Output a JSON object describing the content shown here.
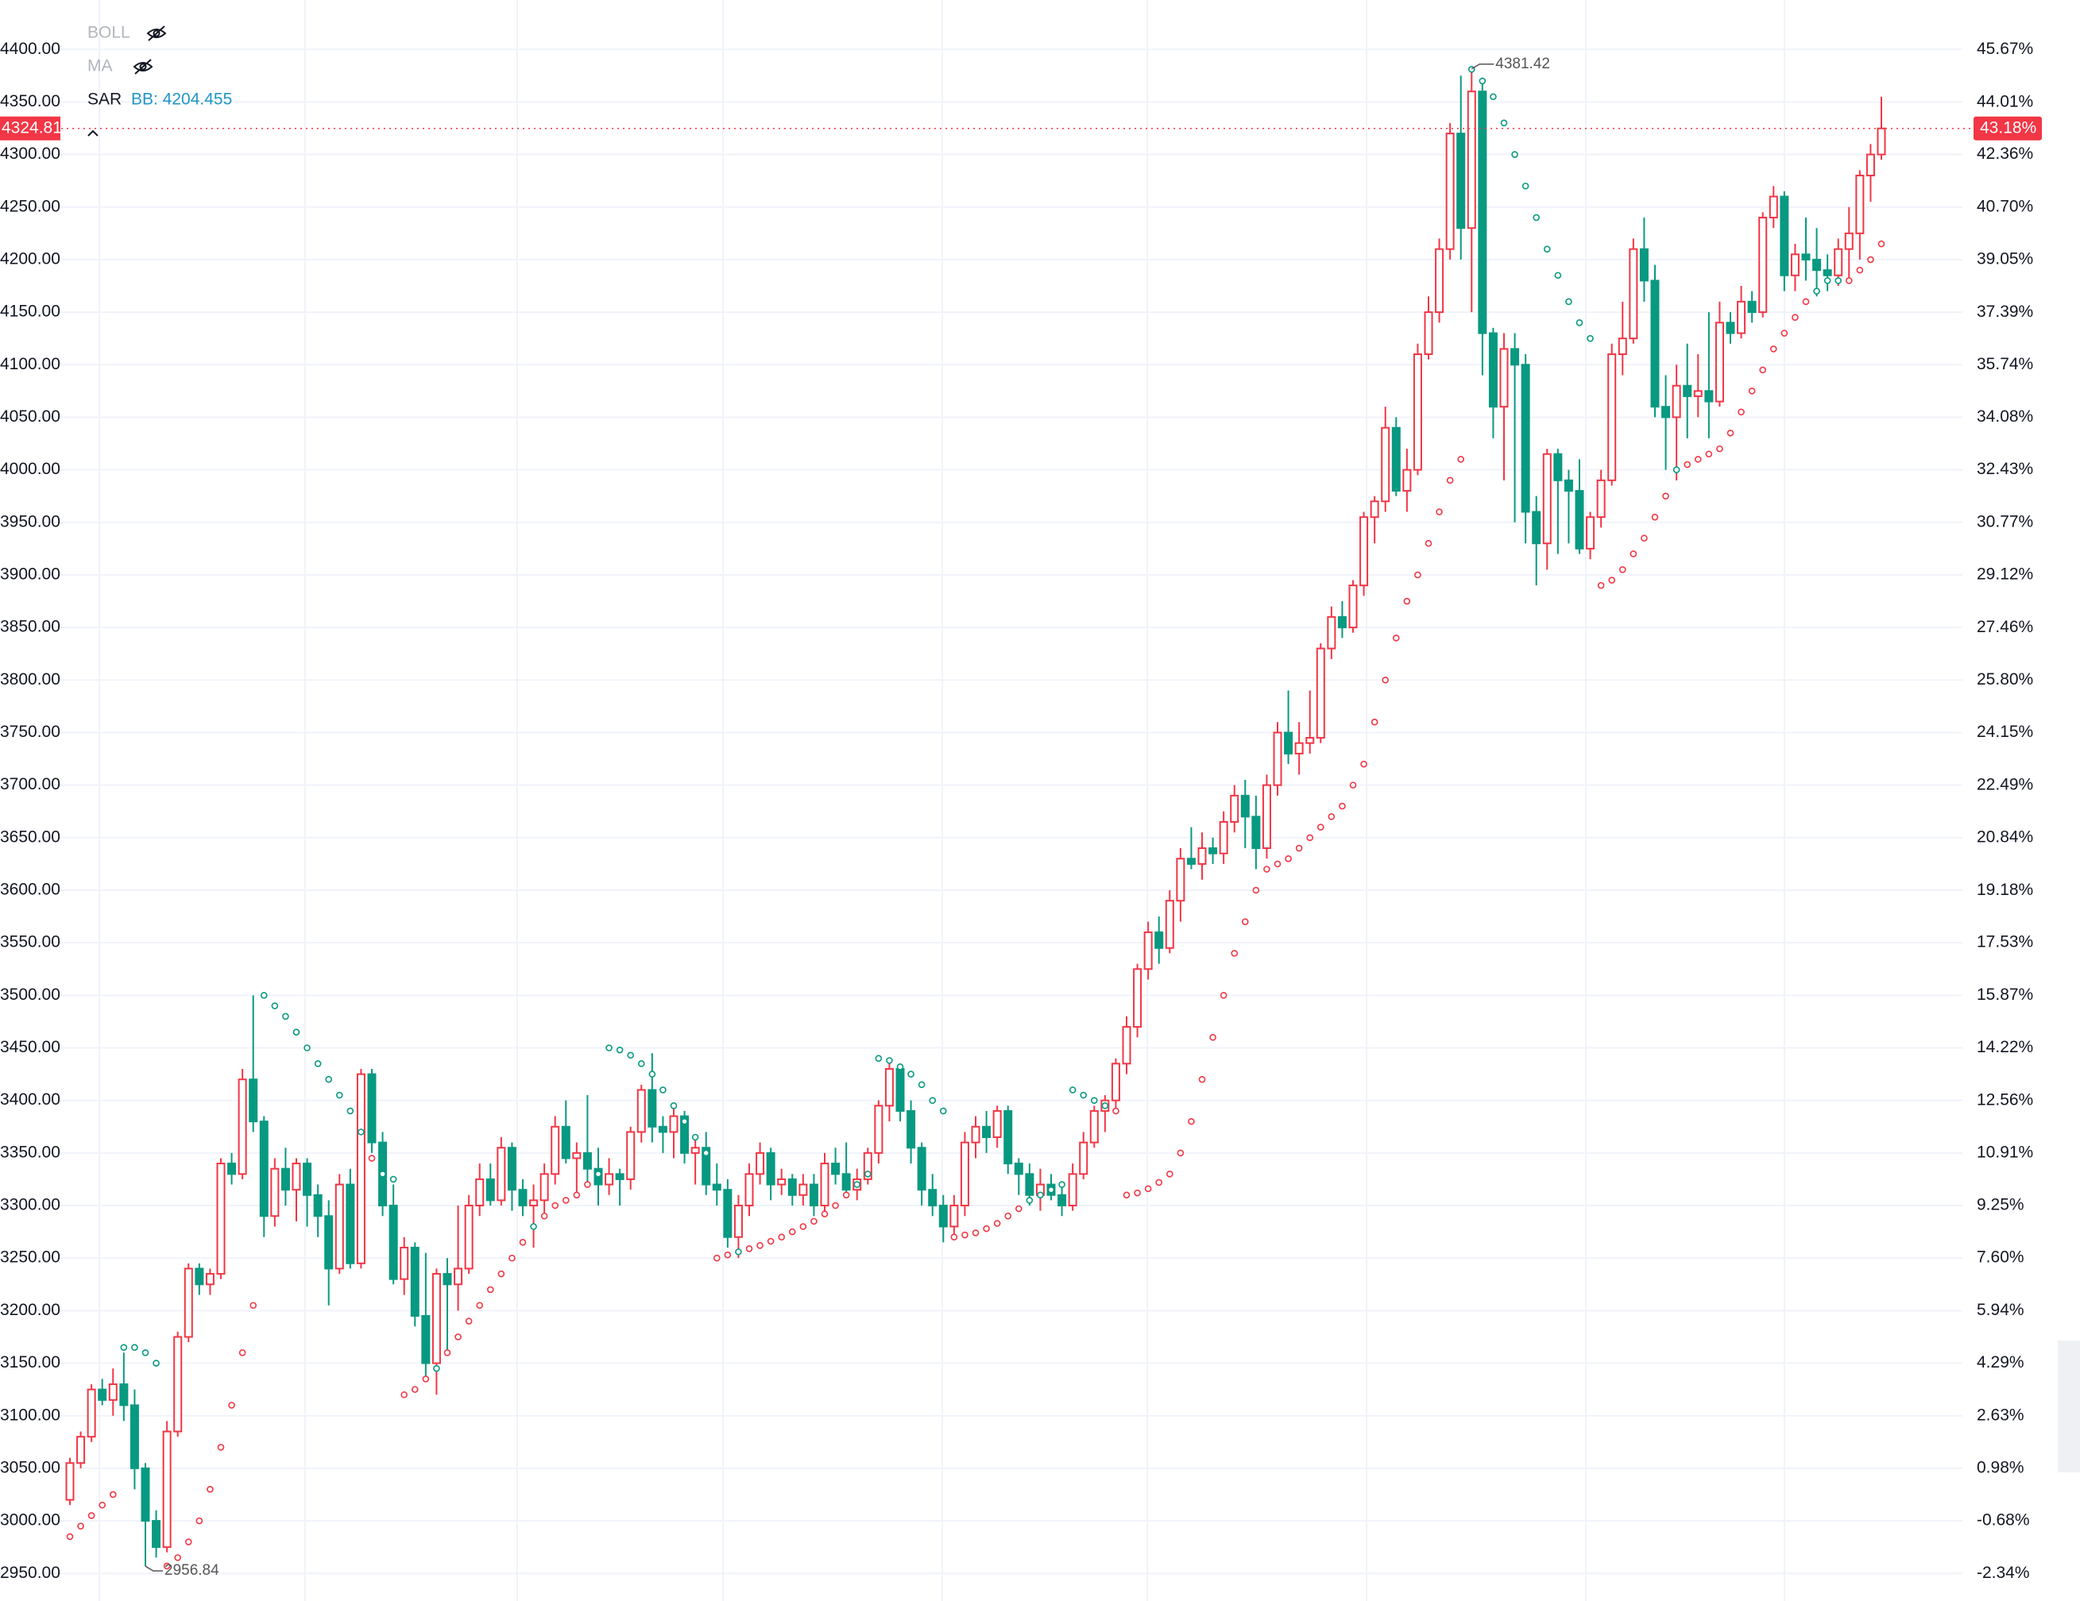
{
  "chart_data": {
    "type": "candlestick",
    "indicators": [
      "BOLL",
      "MA",
      "SAR"
    ],
    "bb_label": "BB: 4204.455",
    "up_color": "#f23645",
    "down_color": "#089981",
    "ylim": [
      2926,
      4447
    ],
    "yticks": [
      {
        "value": 2950,
        "label": "2950.00"
      },
      {
        "value": 3000,
        "label": "3000.00"
      },
      {
        "value": 3050,
        "label": "3050.00"
      },
      {
        "value": 3100,
        "label": "3100.00"
      },
      {
        "value": 3150,
        "label": "3150.00"
      },
      {
        "value": 3200,
        "label": "3200.00"
      },
      {
        "value": 3250,
        "label": "3250.00"
      },
      {
        "value": 3300,
        "label": "3300.00"
      },
      {
        "value": 3350,
        "label": "3350.00"
      },
      {
        "value": 3400,
        "label": "3400.00"
      },
      {
        "value": 3450,
        "label": "3450.00"
      },
      {
        "value": 3500,
        "label": "3500.00"
      },
      {
        "value": 3550,
        "label": "3550.00"
      },
      {
        "value": 3600,
        "label": "3600.00"
      },
      {
        "value": 3650,
        "label": "3650.00"
      },
      {
        "value": 3700,
        "label": "3700.00"
      },
      {
        "value": 3750,
        "label": "3750.00"
      },
      {
        "value": 3800,
        "label": "3800.00"
      },
      {
        "value": 3850,
        "label": "3850.00"
      },
      {
        "value": 3900,
        "label": "3900.00"
      },
      {
        "value": 3950,
        "label": "3950.00"
      },
      {
        "value": 4000,
        "label": "4000.00"
      },
      {
        "value": 4050,
        "label": "4050.00"
      },
      {
        "value": 4100,
        "label": "4100.00"
      },
      {
        "value": 4150,
        "label": "4150.00"
      },
      {
        "value": 4200,
        "label": "4200.00"
      },
      {
        "value": 4250,
        "label": "4250.00"
      },
      {
        "value": 4300,
        "label": "4300.00"
      },
      {
        "value": 4350,
        "label": "4350.00"
      },
      {
        "value": 4400,
        "label": "4400.00"
      }
    ],
    "y2lim": [
      -3.13,
      47.23
    ],
    "y2ticks": [
      {
        "value": -2.34,
        "label": "-2.34%"
      },
      {
        "value": -0.68,
        "label": "-0.68%"
      },
      {
        "value": 0.98,
        "label": "0.98%"
      },
      {
        "value": 2.63,
        "label": "2.63%"
      },
      {
        "value": 4.29,
        "label": "4.29%"
      },
      {
        "value": 5.94,
        "label": "5.94%"
      },
      {
        "value": 7.6,
        "label": "7.60%"
      },
      {
        "value": 9.25,
        "label": "9.25%"
      },
      {
        "value": 10.91,
        "label": "10.91%"
      },
      {
        "value": 12.56,
        "label": "12.56%"
      },
      {
        "value": 14.22,
        "label": "14.22%"
      },
      {
        "value": 15.87,
        "label": "15.87%"
      },
      {
        "value": 17.53,
        "label": "17.53%"
      },
      {
        "value": 19.18,
        "label": "19.18%"
      },
      {
        "value": 20.84,
        "label": "20.84%"
      },
      {
        "value": 22.49,
        "label": "22.49%"
      },
      {
        "value": 24.15,
        "label": "24.15%"
      },
      {
        "value": 25.8,
        "label": "25.80%"
      },
      {
        "value": 27.46,
        "label": "27.46%"
      },
      {
        "value": 29.12,
        "label": "29.12%"
      },
      {
        "value": 30.77,
        "label": "30.77%"
      },
      {
        "value": 32.43,
        "label": "32.43%"
      },
      {
        "value": 34.08,
        "label": "34.08%"
      },
      {
        "value": 35.74,
        "label": "35.74%"
      },
      {
        "value": 37.39,
        "label": "37.39%"
      },
      {
        "value": 39.05,
        "label": "39.05%"
      },
      {
        "value": 40.7,
        "label": "40.70%"
      },
      {
        "value": 42.36,
        "label": "42.36%"
      },
      {
        "value": 44.01,
        "label": "44.01%"
      },
      {
        "value": 45.67,
        "label": "45.67%"
      }
    ],
    "last_change": {
      "value": 43.18,
      "label": "43.18%"
    },
    "ohlc": [
      [
        3020,
        3060,
        3015,
        3055
      ],
      [
        3055,
        3085,
        3050,
        3080
      ],
      [
        3080,
        3130,
        3075,
        3125
      ],
      [
        3125,
        3135,
        3110,
        3115
      ],
      [
        3115,
        3145,
        3100,
        3130
      ],
      [
        3130,
        3160,
        3095,
        3110
      ],
      [
        3110,
        3125,
        3030,
        3050
      ],
      [
        3050,
        3055,
        2956.84,
        3000
      ],
      [
        3000,
        3010,
        2965,
        2975
      ],
      [
        2975,
        3095,
        2970,
        3085
      ],
      [
        3085,
        3180,
        3080,
        3175
      ],
      [
        3175,
        3245,
        3170,
        3240
      ],
      [
        3240,
        3245,
        3215,
        3225
      ],
      [
        3225,
        3240,
        3215,
        3235
      ],
      [
        3235,
        3345,
        3230,
        3340
      ],
      [
        3340,
        3350,
        3320,
        3330
      ],
      [
        3330,
        3430,
        3325,
        3420
      ],
      [
        3420,
        3500,
        3370,
        3380
      ],
      [
        3380,
        3385,
        3270,
        3290
      ],
      [
        3290,
        3345,
        3280,
        3335
      ],
      [
        3335,
        3355,
        3300,
        3315
      ],
      [
        3315,
        3345,
        3285,
        3340
      ],
      [
        3340,
        3345,
        3280,
        3310
      ],
      [
        3310,
        3320,
        3270,
        3290
      ],
      [
        3290,
        3305,
        3205,
        3240
      ],
      [
        3240,
        3330,
        3235,
        3320
      ],
      [
        3320,
        3335,
        3240,
        3245
      ],
      [
        3245,
        3430,
        3240,
        3425
      ],
      [
        3425,
        3430,
        3350,
        3360
      ],
      [
        3360,
        3370,
        3290,
        3300
      ],
      [
        3300,
        3320,
        3225,
        3230
      ],
      [
        3230,
        3270,
        3215,
        3260
      ],
      [
        3260,
        3265,
        3185,
        3195
      ],
      [
        3195,
        3255,
        3135,
        3150
      ],
      [
        3150,
        3240,
        3120,
        3235
      ],
      [
        3235,
        3250,
        3160,
        3225
      ],
      [
        3225,
        3300,
        3200,
        3240
      ],
      [
        3240,
        3310,
        3235,
        3300
      ],
      [
        3300,
        3340,
        3290,
        3325
      ],
      [
        3325,
        3340,
        3300,
        3305
      ],
      [
        3305,
        3365,
        3300,
        3355
      ],
      [
        3355,
        3360,
        3295,
        3315
      ],
      [
        3315,
        3325,
        3290,
        3300
      ],
      [
        3300,
        3320,
        3260,
        3305
      ],
      [
        3305,
        3340,
        3290,
        3330
      ],
      [
        3330,
        3385,
        3320,
        3375
      ],
      [
        3375,
        3400,
        3340,
        3345
      ],
      [
        3345,
        3360,
        3310,
        3350
      ],
      [
        3350,
        3405,
        3320,
        3335
      ],
      [
        3335,
        3355,
        3300,
        3320
      ],
      [
        3320,
        3345,
        3310,
        3330
      ],
      [
        3330,
        3335,
        3300,
        3325
      ],
      [
        3325,
        3375,
        3315,
        3370
      ],
      [
        3370,
        3415,
        3360,
        3410
      ],
      [
        3410,
        3445,
        3360,
        3375
      ],
      [
        3375,
        3385,
        3350,
        3370
      ],
      [
        3370,
        3395,
        3345,
        3385
      ],
      [
        3385,
        3390,
        3340,
        3350
      ],
      [
        3350,
        3365,
        3320,
        3355
      ],
      [
        3355,
        3370,
        3310,
        3320
      ],
      [
        3320,
        3340,
        3300,
        3315
      ],
      [
        3315,
        3325,
        3260,
        3270
      ],
      [
        3270,
        3310,
        3250,
        3300
      ],
      [
        3300,
        3340,
        3290,
        3330
      ],
      [
        3330,
        3360,
        3320,
        3350
      ],
      [
        3350,
        3355,
        3305,
        3320
      ],
      [
        3320,
        3335,
        3310,
        3325
      ],
      [
        3325,
        3330,
        3300,
        3310
      ],
      [
        3310,
        3330,
        3300,
        3320
      ],
      [
        3320,
        3330,
        3290,
        3300
      ],
      [
        3300,
        3350,
        3295,
        3340
      ],
      [
        3340,
        3355,
        3320,
        3330
      ],
      [
        3330,
        3360,
        3310,
        3315
      ],
      [
        3315,
        3335,
        3305,
        3325
      ],
      [
        3325,
        3355,
        3320,
        3350
      ],
      [
        3350,
        3400,
        3340,
        3395
      ],
      [
        3395,
        3435,
        3380,
        3430
      ],
      [
        3430,
        3435,
        3380,
        3390
      ],
      [
        3390,
        3400,
        3340,
        3355
      ],
      [
        3355,
        3360,
        3300,
        3315
      ],
      [
        3315,
        3330,
        3290,
        3300
      ],
      [
        3300,
        3310,
        3265,
        3280
      ],
      [
        3280,
        3310,
        3270,
        3300
      ],
      [
        3300,
        3370,
        3290,
        3360
      ],
      [
        3360,
        3385,
        3345,
        3375
      ],
      [
        3375,
        3390,
        3350,
        3365
      ],
      [
        3365,
        3395,
        3355,
        3390
      ],
      [
        3390,
        3395,
        3330,
        3340
      ],
      [
        3340,
        3345,
        3310,
        3330
      ],
      [
        3330,
        3340,
        3300,
        3310
      ],
      [
        3310,
        3335,
        3295,
        3320
      ],
      [
        3320,
        3330,
        3305,
        3310
      ],
      [
        3310,
        3320,
        3290,
        3300
      ],
      [
        3300,
        3340,
        3295,
        3330
      ],
      [
        3330,
        3370,
        3325,
        3360
      ],
      [
        3360,
        3395,
        3355,
        3390
      ],
      [
        3390,
        3405,
        3370,
        3400
      ],
      [
        3400,
        3440,
        3390,
        3435
      ],
      [
        3435,
        3480,
        3425,
        3470
      ],
      [
        3470,
        3530,
        3460,
        3525
      ],
      [
        3525,
        3570,
        3515,
        3560
      ],
      [
        3560,
        3575,
        3530,
        3545
      ],
      [
        3545,
        3600,
        3540,
        3590
      ],
      [
        3590,
        3640,
        3570,
        3630
      ],
      [
        3630,
        3660,
        3620,
        3625
      ],
      [
        3625,
        3655,
        3610,
        3640
      ],
      [
        3640,
        3650,
        3625,
        3635
      ],
      [
        3635,
        3675,
        3625,
        3665
      ],
      [
        3665,
        3700,
        3655,
        3690
      ],
      [
        3690,
        3705,
        3640,
        3670
      ],
      [
        3670,
        3690,
        3620,
        3640
      ],
      [
        3640,
        3710,
        3630,
        3700
      ],
      [
        3700,
        3760,
        3690,
        3750
      ],
      [
        3750,
        3790,
        3720,
        3730
      ],
      [
        3730,
        3760,
        3710,
        3740
      ],
      [
        3740,
        3790,
        3730,
        3745
      ],
      [
        3745,
        3835,
        3740,
        3830
      ],
      [
        3830,
        3870,
        3820,
        3860
      ],
      [
        3860,
        3875,
        3840,
        3850
      ],
      [
        3850,
        3895,
        3845,
        3890
      ],
      [
        3890,
        3960,
        3880,
        3955
      ],
      [
        3955,
        3975,
        3930,
        3970
      ],
      [
        3970,
        4060,
        3960,
        4040
      ],
      [
        4040,
        4050,
        3975,
        3980
      ],
      [
        3980,
        4020,
        3960,
        4000
      ],
      [
        4000,
        4120,
        3995,
        4110
      ],
      [
        4110,
        4165,
        4105,
        4150
      ],
      [
        4150,
        4220,
        4140,
        4210
      ],
      [
        4210,
        4330,
        4200,
        4320
      ],
      [
        4320,
        4375,
        4200,
        4230
      ],
      [
        4230,
        4381.42,
        4150,
        4360
      ],
      [
        4360,
        4370,
        4090,
        4130
      ],
      [
        4130,
        4135,
        4030,
        4060
      ],
      [
        4060,
        4130,
        3990,
        4115
      ],
      [
        4115,
        4130,
        3950,
        4100
      ],
      [
        4100,
        4110,
        3930,
        3960
      ],
      [
        3960,
        3975,
        3890,
        3930
      ],
      [
        3930,
        4020,
        3905,
        4015
      ],
      [
        4015,
        4020,
        3920,
        3990
      ],
      [
        3990,
        4000,
        3930,
        3980
      ],
      [
        3980,
        4010,
        3920,
        3925
      ],
      [
        3925,
        3960,
        3915,
        3955
      ],
      [
        3955,
        4000,
        3945,
        3990
      ],
      [
        3990,
        4120,
        3985,
        4110
      ],
      [
        4110,
        4160,
        4090,
        4125
      ],
      [
        4125,
        4220,
        4120,
        4210
      ],
      [
        4210,
        4240,
        4160,
        4180
      ],
      [
        4180,
        4195,
        4050,
        4060
      ],
      [
        4060,
        4090,
        4000,
        4050
      ],
      [
        4050,
        4100,
        3990,
        4080
      ],
      [
        4080,
        4120,
        4030,
        4070
      ],
      [
        4070,
        4110,
        4050,
        4075
      ],
      [
        4075,
        4150,
        4030,
        4065
      ],
      [
        4065,
        4160,
        4060,
        4140
      ],
      [
        4140,
        4150,
        4120,
        4130
      ],
      [
        4130,
        4175,
        4125,
        4160
      ],
      [
        4160,
        4170,
        4140,
        4150
      ],
      [
        4150,
        4245,
        4145,
        4240
      ],
      [
        4240,
        4270,
        4230,
        4260
      ],
      [
        4260,
        4265,
        4170,
        4185
      ],
      [
        4185,
        4215,
        4170,
        4205
      ],
      [
        4205,
        4240,
        4180,
        4200
      ],
      [
        4200,
        4230,
        4165,
        4190
      ],
      [
        4190,
        4205,
        4170,
        4185
      ],
      [
        4185,
        4220,
        4175,
        4210
      ],
      [
        4210,
        4250,
        4180,
        4225
      ],
      [
        4225,
        4285,
        4200,
        4280
      ],
      [
        4280,
        4310,
        4255,
        4300
      ],
      [
        4300,
        4355,
        4295,
        4324.81
      ]
    ],
    "sar": [
      2985,
      2995,
      3005,
      3015,
      3025,
      3165,
      3165,
      3160,
      3150,
      2957,
      2965,
      2980,
      3000,
      3030,
      3070,
      3110,
      3160,
      3205,
      3500,
      3490,
      3480,
      3465,
      3450,
      3435,
      3420,
      3405,
      3390,
      3370,
      3345,
      3330,
      3325,
      3120,
      3125,
      3135,
      3145,
      3160,
      3175,
      3190,
      3205,
      3220,
      3235,
      3250,
      3265,
      3280,
      3290,
      3300,
      3305,
      3310,
      3320,
      3330,
      3450,
      3448,
      3443,
      3435,
      3425,
      3410,
      3395,
      3380,
      3365,
      3350,
      3250,
      3253,
      3256,
      3259,
      3262,
      3266,
      3270,
      3275,
      3280,
      3285,
      3292,
      3300,
      3310,
      3320,
      3330,
      3440,
      3438,
      3432,
      3425,
      3415,
      3400,
      3390,
      3270,
      3272,
      3274,
      3278,
      3283,
      3290,
      3297,
      3305,
      3310,
      3315,
      3320,
      3410,
      3405,
      3400,
      3395,
      3390,
      3310,
      3312,
      3316,
      3322,
      3330,
      3350,
      3380,
      3420,
      3460,
      3500,
      3540,
      3570,
      3600,
      3620,
      3625,
      3630,
      3640,
      3650,
      3660,
      3670,
      3680,
      3700,
      3720,
      3760,
      3800,
      3840,
      3875,
      3900,
      3930,
      3960,
      3990,
      4010,
      4381,
      4370,
      4355,
      4330,
      4300,
      4270,
      4240,
      4210,
      4185,
      4160,
      4140,
      4125,
      3890,
      3895,
      3905,
      3920,
      3935,
      3955,
      3975,
      4000,
      4005,
      4010,
      4015,
      4020,
      4035,
      4055,
      4075,
      4095,
      4115,
      4130,
      4145,
      4160,
      4170,
      4180,
      4180,
      4180,
      4190,
      4200,
      4215
    ]
  }
}
